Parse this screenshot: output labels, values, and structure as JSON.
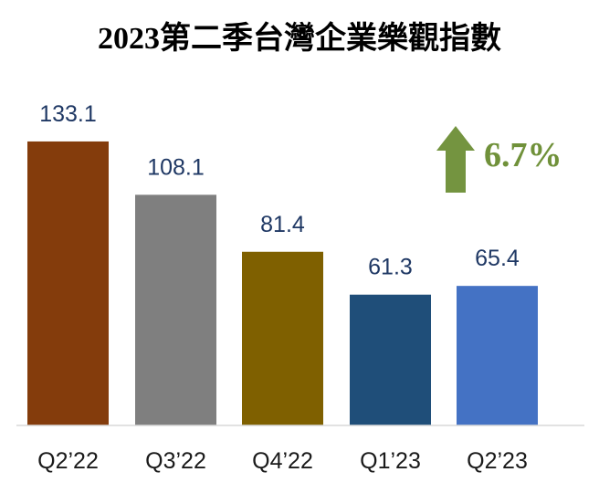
{
  "chart_data": {
    "type": "bar",
    "title": "2023第二季台灣企業樂觀指數",
    "categories": [
      "Q2’22",
      "Q3’22",
      "Q4’22",
      "Q1’23",
      "Q2’23"
    ],
    "values": [
      133.1,
      108.1,
      81.4,
      61.3,
      65.4
    ],
    "colors": [
      "#843c0c",
      "#7f7f7f",
      "#7f6000",
      "#1f4e79",
      "#4472c4"
    ],
    "ylim": [
      0,
      140
    ],
    "grid": false,
    "annotation": {
      "text": "6.7%",
      "icon": "up-arrow-icon",
      "color": "#70913a"
    }
  }
}
